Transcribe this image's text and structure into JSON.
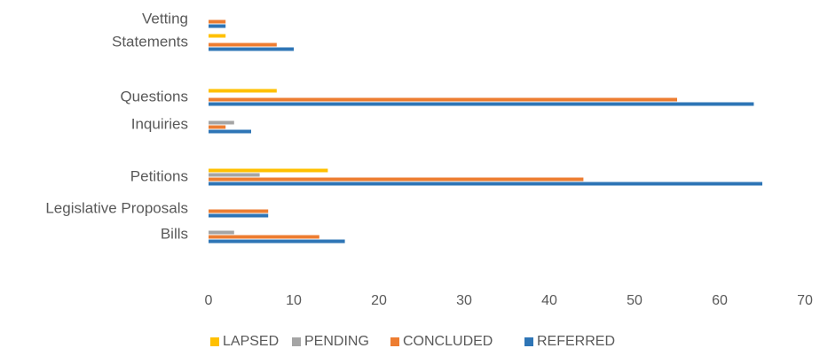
{
  "chart_data": {
    "type": "bar",
    "orientation": "horizontal",
    "title": "",
    "xlabel": "",
    "ylabel": "",
    "xlim": [
      0,
      70
    ],
    "x_ticks": [
      "0",
      "10",
      "20",
      "30",
      "40",
      "50",
      "60",
      "70"
    ],
    "grid": false,
    "legend_position": "bottom",
    "categories": [
      "Vetting",
      "Statements",
      "Questions",
      "Inquiries",
      "Petitions",
      "Legislative Proposals",
      "Bills"
    ],
    "series": [
      {
        "name": "LAPSED",
        "color": "#FFC000",
        "values": [
          0,
          2,
          8,
          0,
          14,
          0,
          0
        ]
      },
      {
        "name": "PENDING",
        "color": "#A5A5A5",
        "values": [
          0,
          0,
          0,
          3,
          6,
          0,
          3
        ]
      },
      {
        "name": "CONCLUDED",
        "color": "#ED7D31",
        "values": [
          2,
          8,
          55,
          2,
          44,
          7,
          13
        ]
      },
      {
        "name": "REFERRED",
        "color": "#2E75B6",
        "values": [
          2,
          10,
          64,
          5,
          65,
          7,
          16
        ]
      }
    ]
  }
}
